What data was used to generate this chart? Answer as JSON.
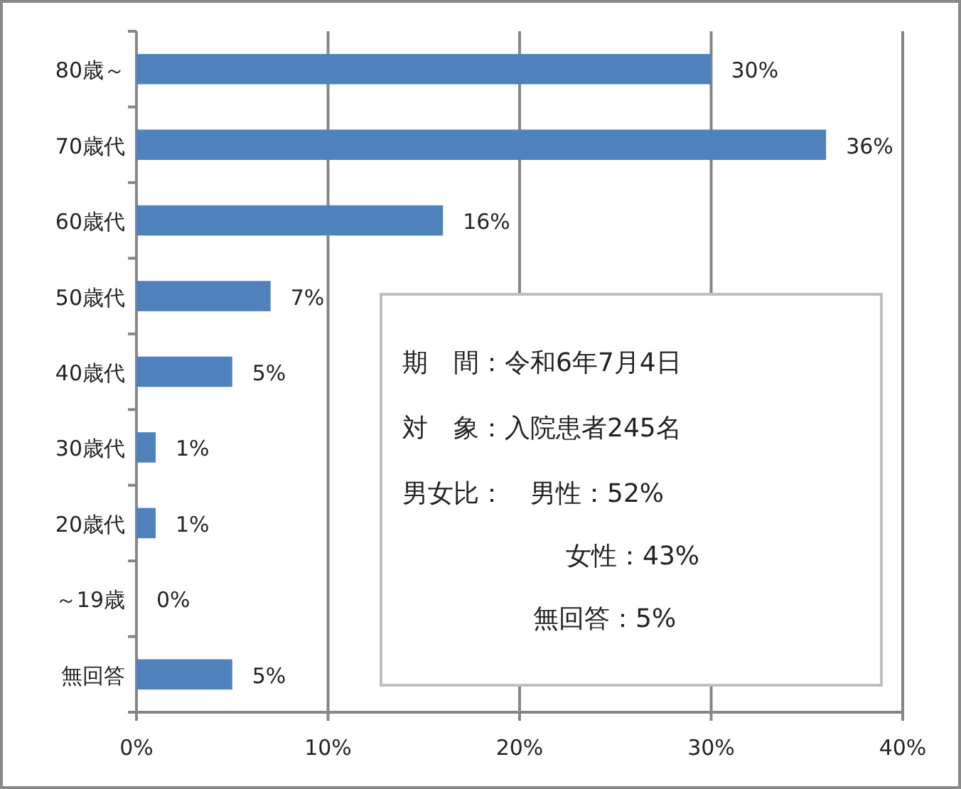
{
  "chart_data": {
    "type": "bar",
    "orientation": "horizontal",
    "categories": [
      "80歳～",
      "70歳代",
      "60歳代",
      "50歳代",
      "40歳代",
      "30歳代",
      "20歳代",
      "～19歳",
      "無回答"
    ],
    "values": [
      30,
      36,
      16,
      7,
      5,
      1,
      1,
      0,
      5
    ],
    "value_labels": [
      "30%",
      "36%",
      "16%",
      "7%",
      "5%",
      "1%",
      "1%",
      "0%",
      "5%"
    ],
    "color": "#4f81bd",
    "xlim": [
      0,
      40
    ],
    "xticks": [
      {
        "value": 0,
        "label": "0%"
      },
      {
        "value": 10,
        "label": "10%"
      },
      {
        "value": 20,
        "label": "20%"
      },
      {
        "value": 30,
        "label": "30%"
      },
      {
        "value": 40,
        "label": "40%"
      }
    ],
    "grid": "x",
    "annotations": [
      "期　間：令和6年7月4日",
      "対　象：入院患者245名",
      "男女比：　男性：52%",
      "女性：43%",
      "無回答：5%"
    ]
  }
}
